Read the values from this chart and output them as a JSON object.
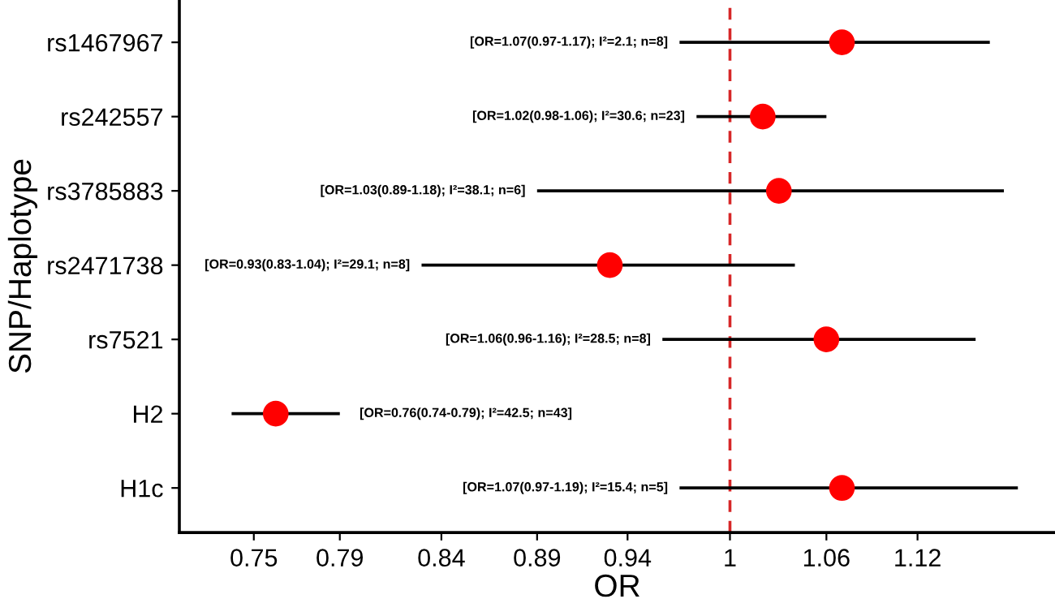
{
  "chart_data": {
    "type": "scatter",
    "orientation": "horizontal",
    "xlabel": "OR",
    "ylabel": "SNP/Haplotype",
    "categories": [
      "rs1467967",
      "rs242557",
      "rs3785883",
      "rs2471738",
      "rs7521",
      "H2",
      "H1c"
    ],
    "values": [
      1.07,
      1.02,
      1.03,
      0.93,
      1.06,
      0.76,
      1.07
    ],
    "errors": [
      [
        0.97,
        1.17
      ],
      [
        0.98,
        1.06
      ],
      [
        0.89,
        1.18
      ],
      [
        0.83,
        1.04
      ],
      [
        0.96,
        1.16
      ],
      [
        0.74,
        0.79
      ],
      [
        0.97,
        1.19
      ]
    ],
    "color": "#ff0000",
    "marker": "circle",
    "log": "x",
    "xlim": [
      0.717,
      1.217
    ],
    "xticks": [
      0.75,
      0.79,
      0.84,
      0.89,
      0.94,
      1,
      1.06,
      1.12
    ],
    "grid": false,
    "ref_lines": [
      {
        "axis": "x",
        "value": 1,
        "color": "#d62728",
        "line_style": "dashed"
      }
    ],
    "annotations": [
      "[OR=1.07(0.97-1.17); I²=2.1; n=8]",
      "[OR=1.02(0.98-1.06); I²=30.6; n=23]",
      "[OR=1.03(0.89-1.18); I²=38.1; n=6]",
      "[OR=0.93(0.83-1.04); I²=29.1; n=8]",
      "[OR=1.06(0.96-1.16); I²=28.5; n=8]",
      "[OR=0.76(0.74-0.79); I²=42.5; n=43]",
      "[OR=1.07(0.97-1.19); I²=15.4; n=5]"
    ]
  }
}
